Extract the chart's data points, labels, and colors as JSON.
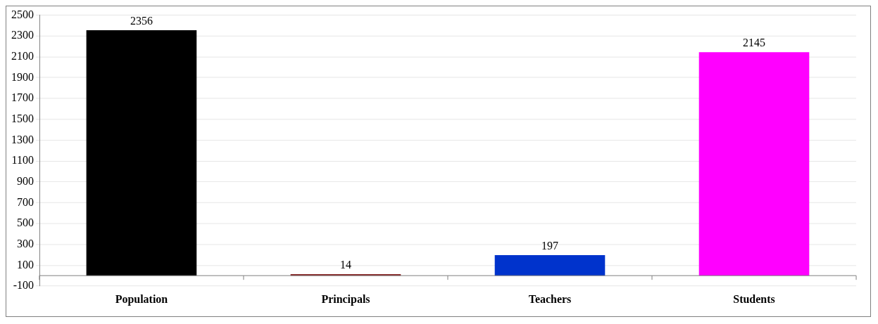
{
  "chart_data": {
    "type": "bar",
    "categories": [
      "Population",
      "Principals",
      "Teachers",
      "Students"
    ],
    "values": [
      2356,
      14,
      197,
      2145
    ],
    "colors": [
      "#000000",
      "#8b2a2a",
      "#0033cc",
      "#ff00ff"
    ],
    "ylim": [
      -100,
      2500
    ],
    "yticks": [
      -100,
      100,
      300,
      500,
      700,
      900,
      1100,
      1300,
      1500,
      1700,
      1900,
      2100,
      2300,
      2500
    ],
    "grid": "y",
    "legend": false,
    "data_labels": true
  }
}
